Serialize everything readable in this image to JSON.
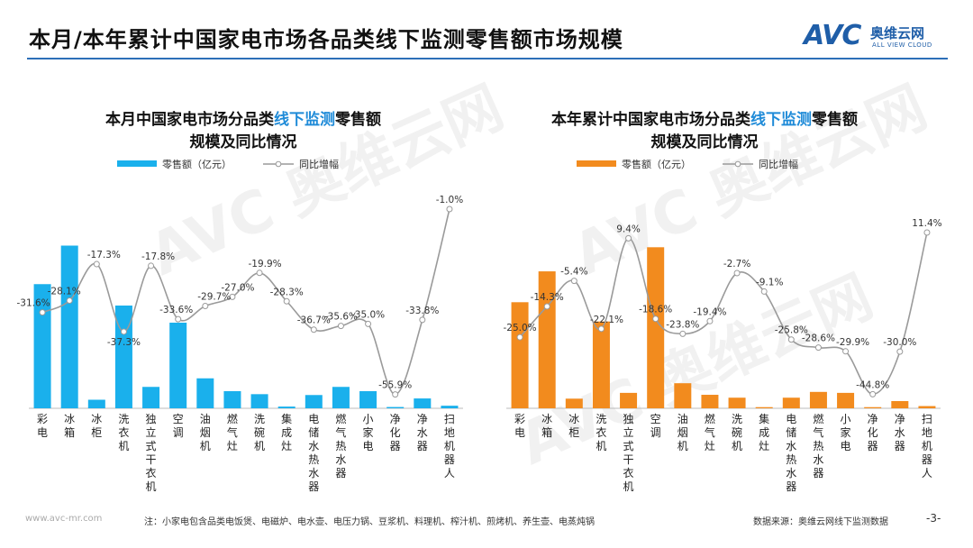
{
  "header": {
    "title": "本月/本年累计中国家电市场各品类线下监测零售额市场规模",
    "logo_text": "AVC",
    "logo_cn": "奥维云网",
    "logo_en": "ALL VIEW CLOUD"
  },
  "watermark_text": "AVC 奥维云网",
  "footer": {
    "url": "www.avc-mr.com",
    "note": "注：小家电包含品类电饭煲、电磁炉、电水壶、电压力锅、豆浆机、料理机、榨汁机、煎烤机、养生壶、电蒸炖锅",
    "source": "数据来源：奥维云网线下监测数据",
    "page": "-3-"
  },
  "colors": {
    "accent_blue": "#1f5ea8",
    "bar_left": "#1ab0ec",
    "bar_right": "#f28b1e",
    "line": "#9a9a9a",
    "highlight": "#1f8bd8"
  },
  "chart_data": [
    {
      "type": "bar",
      "title_parts": [
        "本月中国家电市场分品类",
        "线下监测",
        "零售额"
      ],
      "title_line2": "规模及同比情况",
      "legend": {
        "bar_label": "零售额（亿元）",
        "line_label": "同比增幅"
      },
      "categories": [
        "彩电",
        "冰箱",
        "冰柜",
        "洗衣机",
        "独立式干衣机",
        "空调",
        "油烟机",
        "燃气灶",
        "洗碗机",
        "集成灶",
        "电储水热水器",
        "燃气热水器",
        "小家电",
        "净化器",
        "净水器",
        "扫地机器人"
      ],
      "series": [
        {
          "name": "零售额（亿元）",
          "type": "bar",
          "values": [
            29,
            38,
            2,
            24,
            5,
            20,
            7,
            4,
            3.3,
            0.4,
            3.1,
            5,
            4,
            0.3,
            2.3,
            0.6
          ]
        },
        {
          "name": "同比增幅",
          "type": "line",
          "values": [
            -31.6,
            -28.1,
            -17.3,
            -37.3,
            -17.8,
            -33.6,
            -29.7,
            -27.0,
            -19.9,
            -28.3,
            -36.7,
            -35.6,
            -35.0,
            -55.9,
            -33.8,
            -1.0
          ],
          "labels": [
            "-31.6%",
            "-28.1%",
            "-17.3%",
            "-37.3%",
            "-17.8%",
            "-33.6%",
            "-29.7%",
            "-27.0%",
            "-19.9%",
            "-28.3%",
            "-36.7%",
            "-35.6%",
            "-35.0%",
            "-55.9%",
            "-33.8%",
            "-1.0%"
          ]
        }
      ]
    },
    {
      "type": "bar",
      "title_parts": [
        "本年累计中国家电市场分品类",
        "线下监测",
        "零售额"
      ],
      "title_line2": "规模及同比情况",
      "legend": {
        "bar_label": "零售额（亿元）",
        "line_label": "同比增幅"
      },
      "categories": [
        "彩电",
        "冰箱",
        "冰柜",
        "洗衣机",
        "独立式干衣机",
        "空调",
        "油烟机",
        "燃气灶",
        "洗碗机",
        "集成灶",
        "电储水热水器",
        "燃气热水器",
        "小家电",
        "净化器",
        "净水器",
        "扫地机器人"
      ],
      "series": [
        {
          "name": "零售额（亿元）",
          "type": "bar",
          "values": [
            110,
            142,
            10,
            90,
            16,
            167,
            26,
            14,
            11,
            1.2,
            11,
            17,
            16,
            1.2,
            7.5,
            2.3
          ]
        },
        {
          "name": "同比增幅",
          "type": "line",
          "values": [
            -25.0,
            -14.3,
            -5.4,
            -22.1,
            9.4,
            -18.6,
            -23.8,
            -19.4,
            -2.7,
            -9.1,
            -25.8,
            -28.6,
            -29.9,
            -44.8,
            -30.0,
            11.4
          ],
          "labels": [
            "-25.0%",
            "-14.3%",
            "-5.4%",
            "-22.1%",
            "9.4%",
            "-18.6%",
            "-23.8%",
            "-19.4%",
            "-2.7%",
            "-9.1%",
            "-25.8%",
            "-28.6%",
            "-29.9%",
            "-44.8%",
            "-30.0%",
            "11.4%"
          ]
        }
      ]
    }
  ]
}
